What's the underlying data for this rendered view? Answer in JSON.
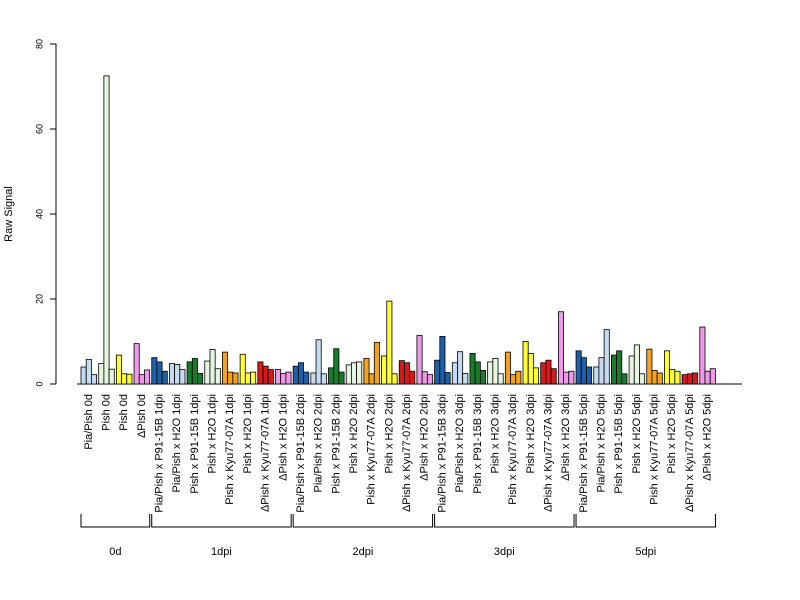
{
  "chart_data": {
    "type": "bar",
    "ylabel": "Raw Signal",
    "ylim": [
      0,
      80
    ],
    "y_ticks": [
      0,
      20,
      40,
      60,
      80
    ],
    "grid": false,
    "legend": "none",
    "categories": [
      {
        "label": "Pia/Pish 0d",
        "color": "#c6dbef",
        "values": [
          4.0,
          5.8,
          2.2
        ]
      },
      {
        "label": "Pish 0d",
        "color": "#e5f5e0",
        "values": [
          4.8,
          72.5,
          3.5
        ]
      },
      {
        "label": "Pish 0d",
        "color": "#ffff33",
        "values": [
          6.8,
          2.4,
          2.3
        ]
      },
      {
        "label": "ΔPish 0d",
        "color": "#ee9ae8",
        "values": [
          9.5,
          2.2,
          3.3
        ]
      },
      {
        "label": "Pia/Pish x P91-15B 1dpi",
        "color": "#1f5fa8",
        "values": [
          6.2,
          5.2,
          3.0
        ]
      },
      {
        "label": "Pia/Pish x H2O 1dpi",
        "color": "#c6dbef",
        "values": [
          4.8,
          4.6,
          3.4
        ]
      },
      {
        "label": "Pish x P91-15B 1dpi",
        "color": "#1b7a2e",
        "values": [
          5.2,
          6.0,
          2.5
        ]
      },
      {
        "label": "Pish x H2O 1dpi",
        "color": "#e5f5e0",
        "values": [
          5.4,
          8.1,
          3.6
        ]
      },
      {
        "label": "Pish x Kyu77-07A 1dpi",
        "color": "#f5a21f",
        "values": [
          7.5,
          2.8,
          2.6
        ]
      },
      {
        "label": "Pish x H2O 1dpi",
        "color": "#ffff33",
        "values": [
          7.0,
          2.6,
          2.8
        ]
      },
      {
        "label": "ΔPish x Kyu77-07A 1dpi",
        "color": "#d7191c",
        "values": [
          5.2,
          4.2,
          3.4
        ]
      },
      {
        "label": "ΔPish x H2O 1dpi",
        "color": "#ee9ae8",
        "values": [
          3.4,
          2.5,
          2.8
        ]
      },
      {
        "label": "Pia/Pish x P91-15B 2dpi",
        "color": "#1f5fa8",
        "values": [
          4.2,
          5.0,
          2.8
        ]
      },
      {
        "label": "Pia/Pish x H2O 2dpi",
        "color": "#c6dbef",
        "values": [
          2.6,
          10.4,
          2.4
        ]
      },
      {
        "label": "Pish x P91-15B 2dpi",
        "color": "#1b7a2e",
        "values": [
          3.8,
          8.3,
          2.8
        ]
      },
      {
        "label": "Pish x H2O 2dpi",
        "color": "#e5f5e0",
        "values": [
          4.5,
          5.0,
          5.2
        ]
      },
      {
        "label": "Pish x Kyu77-07A 2dpi",
        "color": "#f5a21f",
        "values": [
          6.0,
          2.4,
          9.8
        ]
      },
      {
        "label": "Pish x H2O 2dpi",
        "color": "#ffff33",
        "values": [
          6.6,
          19.5,
          2.4
        ]
      },
      {
        "label": "ΔPish x Kyu77-07A 2dpi",
        "color": "#d7191c",
        "values": [
          5.5,
          5.0,
          3.0
        ]
      },
      {
        "label": "ΔPish x H2O 2dpi",
        "color": "#ee9ae8",
        "values": [
          11.4,
          2.9,
          2.2
        ]
      },
      {
        "label": "Pia/Pish x P91-15B 3dpi",
        "color": "#1f5fa8",
        "values": [
          5.6,
          11.2,
          2.7
        ]
      },
      {
        "label": "Pia/Pish x H2O 3dpi",
        "color": "#c6dbef",
        "values": [
          5.0,
          7.6,
          2.5
        ]
      },
      {
        "label": "Pish x P91-15B 3dpi",
        "color": "#1b7a2e",
        "values": [
          7.2,
          5.2,
          3.2
        ]
      },
      {
        "label": "Pish x H2O 3dpi",
        "color": "#e5f5e0",
        "values": [
          5.2,
          6.0,
          2.4
        ]
      },
      {
        "label": "Pish x Kyu77-07A 3dpi",
        "color": "#f5a21f",
        "values": [
          7.5,
          2.2,
          3.0
        ]
      },
      {
        "label": "Pish x H2O 3dpi",
        "color": "#ffff33",
        "values": [
          10.0,
          7.2,
          3.8
        ]
      },
      {
        "label": "ΔPish x Kyu77-07A 3dpi",
        "color": "#d7191c",
        "values": [
          5.0,
          5.6,
          3.6
        ]
      },
      {
        "label": "ΔPish x H2O 3dpi",
        "color": "#ee9ae8",
        "values": [
          17.0,
          2.8,
          3.0
        ]
      },
      {
        "label": "Pia/Pish x P91-15B 5dpi",
        "color": "#1f5fa8",
        "values": [
          7.8,
          6.2,
          4.0
        ]
      },
      {
        "label": "Pia/Pish x H2O 5dpi",
        "color": "#c6dbef",
        "values": [
          4.0,
          6.2,
          12.8
        ]
      },
      {
        "label": "Pish x P91-15B 5dpi",
        "color": "#1b7a2e",
        "values": [
          6.8,
          7.8,
          2.4
        ]
      },
      {
        "label": "Pish x H2O 5dpi",
        "color": "#e5f5e0",
        "values": [
          6.6,
          9.2,
          2.4
        ]
      },
      {
        "label": "Pish x Kyu77-07A 5dpi",
        "color": "#f5a21f",
        "values": [
          8.2,
          3.2,
          2.6
        ]
      },
      {
        "label": "Pish x H2O 5dpi",
        "color": "#ffff33",
        "values": [
          7.8,
          3.4,
          3.0
        ]
      },
      {
        "label": "ΔPish x Kyu77-07A 5dpi",
        "color": "#d7191c",
        "values": [
          2.2,
          2.4,
          2.6
        ]
      },
      {
        "label": "ΔPish x H2O 5dpi",
        "color": "#ee9ae8",
        "values": [
          13.4,
          3.0,
          3.6
        ]
      }
    ],
    "groups": [
      {
        "label": "0d",
        "span": [
          0,
          3
        ]
      },
      {
        "label": "1dpi",
        "span": [
          4,
          11
        ]
      },
      {
        "label": "2dpi",
        "span": [
          12,
          19
        ]
      },
      {
        "label": "3dpi",
        "span": [
          20,
          27
        ]
      },
      {
        "label": "5dpi",
        "span": [
          28,
          35
        ]
      }
    ]
  }
}
